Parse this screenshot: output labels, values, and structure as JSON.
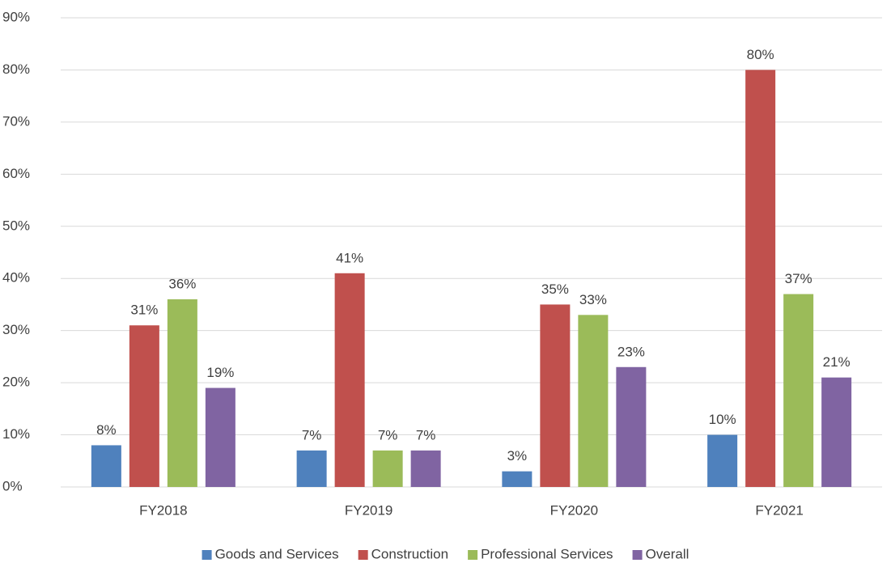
{
  "chart_data": {
    "type": "bar",
    "categories": [
      "FY2018",
      "FY2019",
      "FY2020",
      "FY2021"
    ],
    "series": [
      {
        "name": "Goods and Services",
        "color": "#4f81bd",
        "values": [
          8,
          7,
          3,
          10
        ],
        "value_labels": [
          "8%",
          "7%",
          "3%",
          "10%"
        ]
      },
      {
        "name": "Construction",
        "color": "#c0504d",
        "values": [
          31,
          41,
          35,
          80
        ],
        "value_labels": [
          "31%",
          "41%",
          "35%",
          "80%"
        ]
      },
      {
        "name": "Professional Services",
        "color": "#9bbb59",
        "values": [
          36,
          7,
          33,
          37
        ],
        "value_labels": [
          "36%",
          "7%",
          "33%",
          "37%"
        ]
      },
      {
        "name": "Overall",
        "color": "#8064a2",
        "values": [
          19,
          7,
          23,
          21
        ],
        "value_labels": [
          "19%",
          "7%",
          "23%",
          "21%"
        ]
      }
    ],
    "ylim": [
      0,
      90
    ],
    "yticks": [
      {
        "value": 0,
        "label": "0%"
      },
      {
        "value": 10,
        "label": "10%"
      },
      {
        "value": 20,
        "label": "20%"
      },
      {
        "value": 30,
        "label": "30%"
      },
      {
        "value": 40,
        "label": "40%"
      },
      {
        "value": 50,
        "label": "50%"
      },
      {
        "value": 60,
        "label": "60%"
      },
      {
        "value": 70,
        "label": "70%"
      },
      {
        "value": 80,
        "label": "80%"
      },
      {
        "value": 90,
        "label": "90%"
      }
    ],
    "grid": true,
    "legend": "bottom"
  }
}
